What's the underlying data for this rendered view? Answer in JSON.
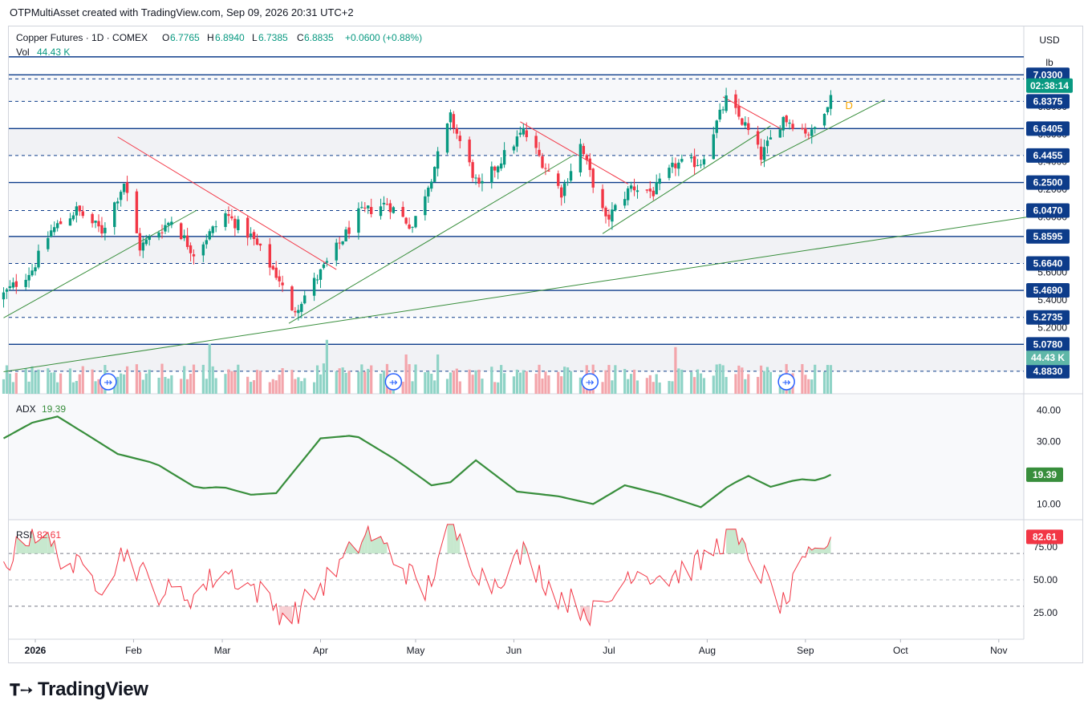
{
  "header": {
    "credit": "OTPMultiAsset created with TradingView.com, Sep 09, 2026 20:31 UTC+2"
  },
  "legend": {
    "symbol": "Copper Futures · 1D · COMEX",
    "o_label": "O",
    "o_value": "6.7765",
    "h_label": "H",
    "h_value": "6.8940",
    "l_label": "L",
    "l_value": "6.7385",
    "c_label": "C",
    "c_value": "6.8835",
    "change": "+0.0600 (+0.88%)",
    "vol_label": "Vol",
    "vol_value": "44.43 K"
  },
  "units": {
    "currency": "USD",
    "unit": "lb"
  },
  "price_panel": {
    "ylim": [
      4.72,
      7.38
    ],
    "tick_labels": [
      "5.0000",
      "5.2000",
      "5.4000",
      "5.6000",
      "6.0000",
      "6.2000",
      "6.4000",
      "6.6000",
      "6.8000",
      "7.0000"
    ],
    "levels": [
      {
        "value": 7.16,
        "style": "solid",
        "label": ""
      },
      {
        "value": 7.0,
        "style": "dash",
        "label": ""
      },
      {
        "value": 7.03,
        "style": "solid",
        "label": "7.0300"
      },
      {
        "value": 6.8375,
        "style": "dash",
        "label": "6.8375"
      },
      {
        "value": 6.6405,
        "style": "solid",
        "label": "6.6405"
      },
      {
        "value": 6.4455,
        "style": "dash",
        "label": "6.4455"
      },
      {
        "value": 6.25,
        "style": "solid",
        "label": "6.2500"
      },
      {
        "value": 6.047,
        "style": "dash",
        "label": "6.0470"
      },
      {
        "value": 5.8595,
        "style": "solid",
        "label": "5.8595"
      },
      {
        "value": 5.664,
        "style": "dash",
        "label": "5.6640"
      },
      {
        "value": 5.469,
        "style": "solid",
        "label": "5.4690"
      },
      {
        "value": 5.2735,
        "style": "dash",
        "label": "5.2735"
      },
      {
        "value": 5.078,
        "style": "solid",
        "label": "5.0780"
      },
      {
        "value": 4.883,
        "style": "dash",
        "label": "4.8830"
      }
    ],
    "countdown": "02:38:14",
    "volume_label": "44.43 K",
    "dividend_marker": "D"
  },
  "chart_data": [
    {
      "type": "candlestick",
      "title": "Copper Futures · 1D · COMEX",
      "x_axis_labels": [
        "2026",
        "Feb",
        "Mar",
        "Apr",
        "May",
        "Jun",
        "Jul",
        "Aug",
        "Sep",
        "Oct",
        "Nov"
      ],
      "ylim": [
        4.72,
        7.38
      ],
      "last_close": 6.8835,
      "anchors": [
        {
          "date": "2025-12-22",
          "close": 5.44
        },
        {
          "date": "2025-12-31",
          "close": 5.62
        },
        {
          "date": "2026-01-06",
          "close": 5.9
        },
        {
          "date": "2026-01-14",
          "close": 6.05
        },
        {
          "date": "2026-01-22",
          "close": 5.9
        },
        {
          "date": "2026-01-29",
          "close": 6.25
        },
        {
          "date": "2026-02-03",
          "close": 5.78
        },
        {
          "date": "2026-02-13",
          "close": 5.98
        },
        {
          "date": "2026-02-20",
          "close": 5.74
        },
        {
          "date": "2026-03-02",
          "close": 6.02
        },
        {
          "date": "2026-03-10",
          "close": 5.86
        },
        {
          "date": "2026-03-19",
          "close": 5.55
        },
        {
          "date": "2026-03-23",
          "close": 5.3
        },
        {
          "date": "2026-04-02",
          "close": 5.63
        },
        {
          "date": "2026-04-13",
          "close": 6.02
        },
        {
          "date": "2026-04-22",
          "close": 6.1
        },
        {
          "date": "2026-04-30",
          "close": 5.93
        },
        {
          "date": "2026-05-06",
          "close": 6.3
        },
        {
          "date": "2026-05-12",
          "close": 6.72
        },
        {
          "date": "2026-05-21",
          "close": 6.2
        },
        {
          "date": "2026-05-30",
          "close": 6.48
        },
        {
          "date": "2026-06-04",
          "close": 6.62
        },
        {
          "date": "2026-06-16",
          "close": 6.18
        },
        {
          "date": "2026-06-22",
          "close": 6.52
        },
        {
          "date": "2026-06-30",
          "close": 5.97
        },
        {
          "date": "2026-07-08",
          "close": 6.22
        },
        {
          "date": "2026-07-15",
          "close": 6.18
        },
        {
          "date": "2026-07-22",
          "close": 6.38
        },
        {
          "date": "2026-07-30",
          "close": 6.4
        },
        {
          "date": "2026-08-07",
          "close": 6.85
        },
        {
          "date": "2026-08-13",
          "close": 6.66
        },
        {
          "date": "2026-08-18",
          "close": 6.44
        },
        {
          "date": "2026-08-25",
          "close": 6.72
        },
        {
          "date": "2026-09-03",
          "close": 6.6
        },
        {
          "date": "2026-09-09",
          "close": 6.8835
        }
      ],
      "trendlines": [
        {
          "color": "#f23645",
          "from": [
            "2026-01-27",
            6.58
          ],
          "to": [
            "2026-04-06",
            5.62
          ]
        },
        {
          "color": "#f23645",
          "from": [
            "2026-06-03",
            6.69
          ],
          "to": [
            "2026-07-07",
            6.24
          ]
        },
        {
          "color": "#f23645",
          "from": [
            "2026-08-06",
            6.87
          ],
          "to": [
            "2026-08-25",
            6.63
          ]
        },
        {
          "color": "#388e3c",
          "from": [
            "2025-12-22",
            5.27
          ],
          "to": [
            "2026-02-21",
            6.05
          ]
        },
        {
          "color": "#388e3c",
          "from": [
            "2026-03-22",
            5.23
          ],
          "to": [
            "2026-06-20",
            6.45
          ]
        },
        {
          "color": "#388e3c",
          "from": [
            "2026-06-29",
            5.88
          ],
          "to": [
            "2026-08-21",
            6.66
          ]
        },
        {
          "color": "#388e3c",
          "from": [
            "2026-08-18",
            6.39
          ],
          "to": [
            "2026-09-26",
            6.85
          ]
        },
        {
          "color": "#388e3c",
          "from": [
            "2025-12-22",
            4.88
          ],
          "to": [
            "2026-11-10",
            6.0
          ]
        }
      ]
    },
    {
      "type": "line",
      "title": "ADX",
      "series": [
        {
          "name": "ADX",
          "value_label": "19.39"
        }
      ],
      "tick_labels": [
        "40.00",
        "30.00",
        "10.00"
      ],
      "ylim": [
        5,
        45
      ],
      "last_value": 19.39,
      "anchors": [
        {
          "date": "2025-12-22",
          "value": 31
        },
        {
          "date": "2025-12-31",
          "value": 36
        },
        {
          "date": "2026-01-08",
          "value": 38
        },
        {
          "date": "2026-01-16",
          "value": 33
        },
        {
          "date": "2026-01-27",
          "value": 26
        },
        {
          "date": "2026-02-08",
          "value": 23
        },
        {
          "date": "2026-02-21",
          "value": 15
        },
        {
          "date": "2026-03-01",
          "value": 15.5
        },
        {
          "date": "2026-03-10",
          "value": 13
        },
        {
          "date": "2026-03-18",
          "value": 13.5
        },
        {
          "date": "2026-04-01",
          "value": 31
        },
        {
          "date": "2026-04-12",
          "value": 32
        },
        {
          "date": "2026-04-25",
          "value": 24
        },
        {
          "date": "2026-05-06",
          "value": 16
        },
        {
          "date": "2026-05-12",
          "value": 17
        },
        {
          "date": "2026-05-20",
          "value": 24
        },
        {
          "date": "2026-06-02",
          "value": 14
        },
        {
          "date": "2026-06-15",
          "value": 12.5
        },
        {
          "date": "2026-06-26",
          "value": 10
        },
        {
          "date": "2026-07-06",
          "value": 16
        },
        {
          "date": "2026-07-18",
          "value": 13
        },
        {
          "date": "2026-07-30",
          "value": 9
        },
        {
          "date": "2026-08-08",
          "value": 16
        },
        {
          "date": "2026-08-14",
          "value": 19
        },
        {
          "date": "2026-08-21",
          "value": 15.5
        },
        {
          "date": "2026-08-30",
          "value": 18
        },
        {
          "date": "2026-09-05",
          "value": 17.5
        },
        {
          "date": "2026-09-09",
          "value": 19.39
        }
      ]
    },
    {
      "type": "line",
      "title": "RSI",
      "series": [
        {
          "name": "RSI",
          "value_label": "82.61"
        }
      ],
      "tick_labels": [
        "75.00",
        "50.00",
        "25.00"
      ],
      "bands": [
        70,
        50,
        30
      ],
      "ylim": [
        5,
        95
      ],
      "last_value": 82.61,
      "anchors": [
        {
          "date": "2025-12-22",
          "value": 60
        },
        {
          "date": "2025-12-31",
          "value": 88
        },
        {
          "date": "2026-01-12",
          "value": 62
        },
        {
          "date": "2026-01-22",
          "value": 48
        },
        {
          "date": "2026-01-29",
          "value": 72
        },
        {
          "date": "2026-02-08",
          "value": 42
        },
        {
          "date": "2026-02-20",
          "value": 38
        },
        {
          "date": "2026-03-01",
          "value": 58
        },
        {
          "date": "2026-03-12",
          "value": 42
        },
        {
          "date": "2026-03-22",
          "value": 20
        },
        {
          "date": "2026-04-05",
          "value": 55
        },
        {
          "date": "2026-04-16",
          "value": 86
        },
        {
          "date": "2026-04-24",
          "value": 68
        },
        {
          "date": "2026-05-04",
          "value": 40
        },
        {
          "date": "2026-05-12",
          "value": 90
        },
        {
          "date": "2026-05-24",
          "value": 45
        },
        {
          "date": "2026-06-04",
          "value": 70
        },
        {
          "date": "2026-06-14",
          "value": 40
        },
        {
          "date": "2026-06-28",
          "value": 22
        },
        {
          "date": "2026-07-08",
          "value": 58
        },
        {
          "date": "2026-07-20",
          "value": 52
        },
        {
          "date": "2026-07-30",
          "value": 63
        },
        {
          "date": "2026-08-08",
          "value": 85
        },
        {
          "date": "2026-08-18",
          "value": 55
        },
        {
          "date": "2026-08-25",
          "value": 30
        },
        {
          "date": "2026-09-01",
          "value": 62
        },
        {
          "date": "2026-09-09",
          "value": 82.61
        }
      ]
    }
  ]
}
